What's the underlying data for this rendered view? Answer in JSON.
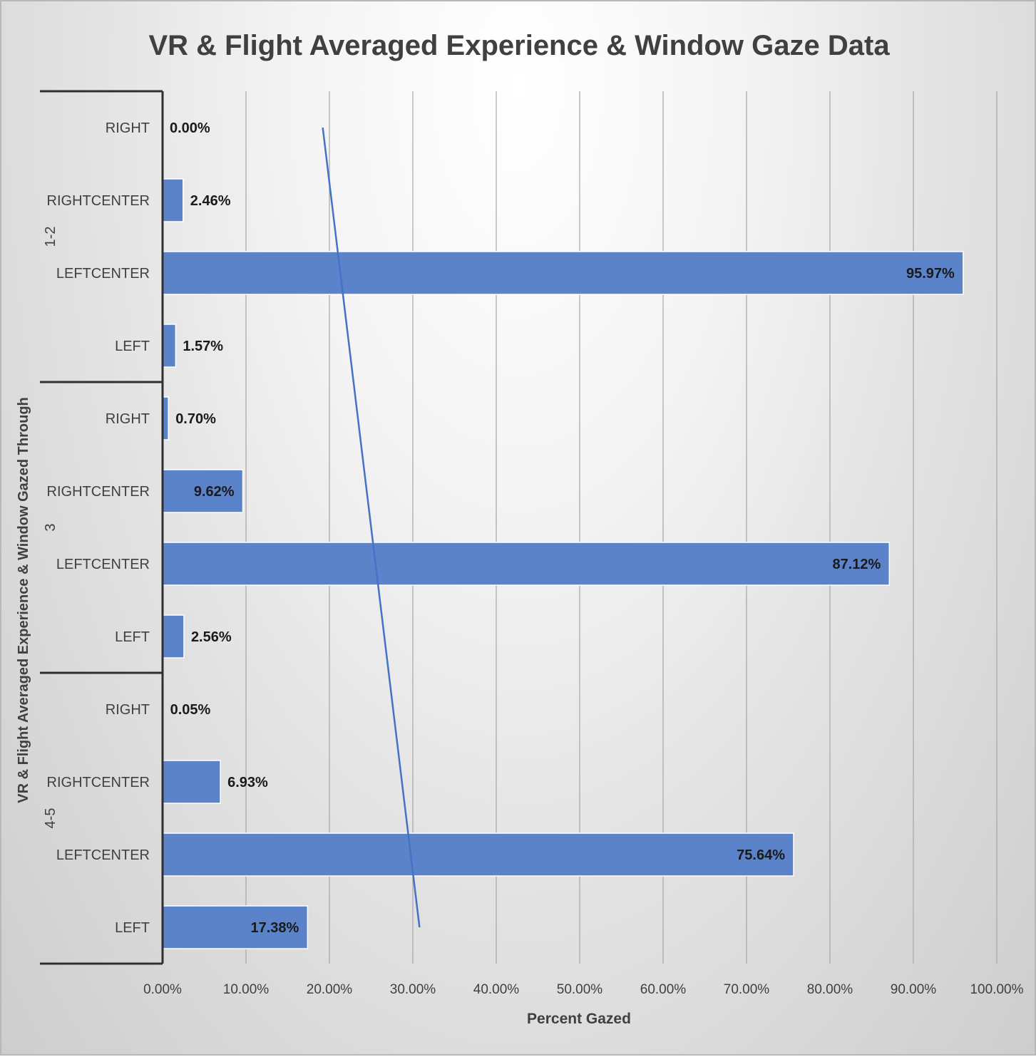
{
  "chart_data": {
    "type": "bar",
    "orientation": "horizontal",
    "title": "VR & Flight Averaged Experience & Window Gaze Data",
    "xlabel": "Percent Gazed",
    "ylabel": "VR & Flight Averaged Experience & Window Gazed Through",
    "xlim": [
      0,
      100
    ],
    "x_ticks": [
      "0.00%",
      "10.00%",
      "20.00%",
      "30.00%",
      "40.00%",
      "50.00%",
      "60.00%",
      "70.00%",
      "80.00%",
      "90.00%",
      "100.00%"
    ],
    "grid": "vertical",
    "bar_color": "#5b83c9",
    "groups": [
      {
        "name": "1-2",
        "categories": [
          "RIGHT",
          "RIGHTCENTER",
          "LEFTCENTER",
          "LEFT"
        ],
        "values": [
          0.0,
          2.46,
          95.97,
          1.57
        ],
        "labels": [
          "0.00%",
          "2.46%",
          "95.97%",
          "1.57%"
        ]
      },
      {
        "name": "3",
        "categories": [
          "RIGHT",
          "RIGHTCENTER",
          "LEFTCENTER",
          "LEFT"
        ],
        "values": [
          0.7,
          9.62,
          87.12,
          2.56
        ],
        "labels": [
          "0.70%",
          "9.62%",
          "87.12%",
          "2.56%"
        ]
      },
      {
        "name": "4-5",
        "categories": [
          "RIGHT",
          "RIGHTCENTER",
          "LEFTCENTER",
          "LEFT"
        ],
        "values": [
          0.05,
          6.93,
          75.64,
          17.38
        ],
        "labels": [
          "0.05%",
          "6.93%",
          "75.64%",
          "17.38%"
        ]
      }
    ],
    "trendline": {
      "type": "linear",
      "color": "#4472c4",
      "start_x": 19.2,
      "end_x": 30.8
    }
  }
}
